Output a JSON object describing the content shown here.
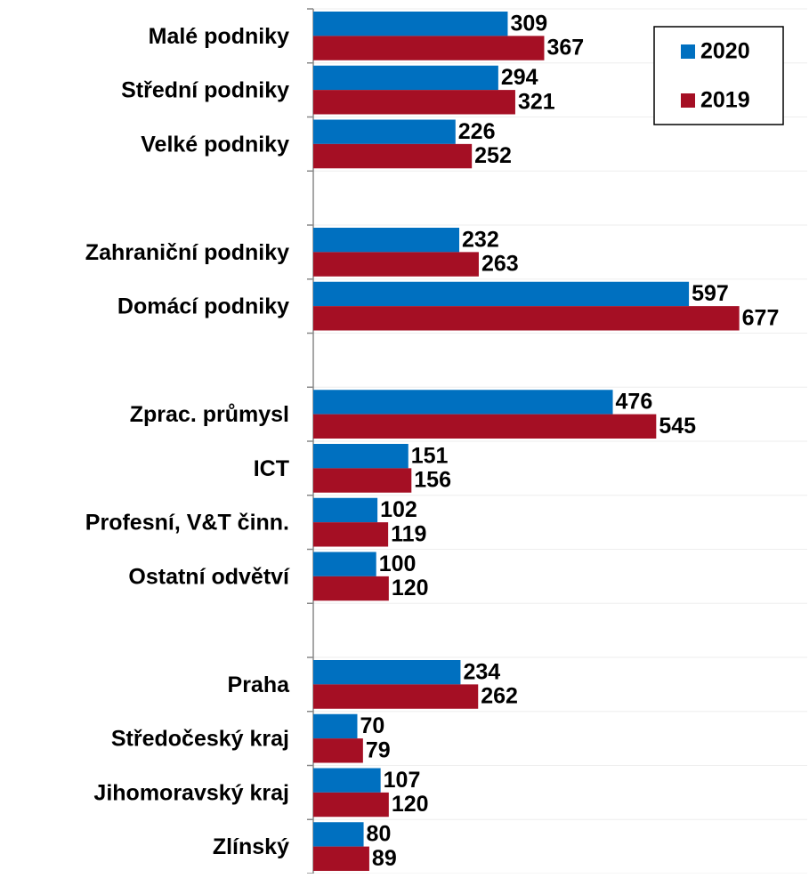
{
  "chart_data": {
    "type": "bar",
    "orientation": "horizontal",
    "categories": [
      "Malé podniky",
      "Střední podniky",
      "Velké podniky",
      null,
      "Zahraniční podniky",
      "Domácí podniky",
      null,
      "Zprac. průmysl",
      "ICT",
      "Profesní, V&T činn.",
      "Ostatní odvětví",
      null,
      "Praha",
      "Středočeský kraj",
      "Jihomoravský kraj",
      "Zlínský"
    ],
    "series": [
      {
        "name": "2020",
        "color": "#0070c0",
        "values": [
          309,
          294,
          226,
          null,
          232,
          597,
          null,
          476,
          151,
          102,
          100,
          null,
          234,
          70,
          107,
          80
        ]
      },
      {
        "name": "2019",
        "color": "#a50f24",
        "values": [
          367,
          321,
          252,
          null,
          263,
          677,
          null,
          545,
          156,
          119,
          120,
          null,
          262,
          79,
          120,
          89
        ]
      }
    ],
    "xlim": [
      0,
      785
    ],
    "grid": true,
    "legend": "top-right"
  }
}
